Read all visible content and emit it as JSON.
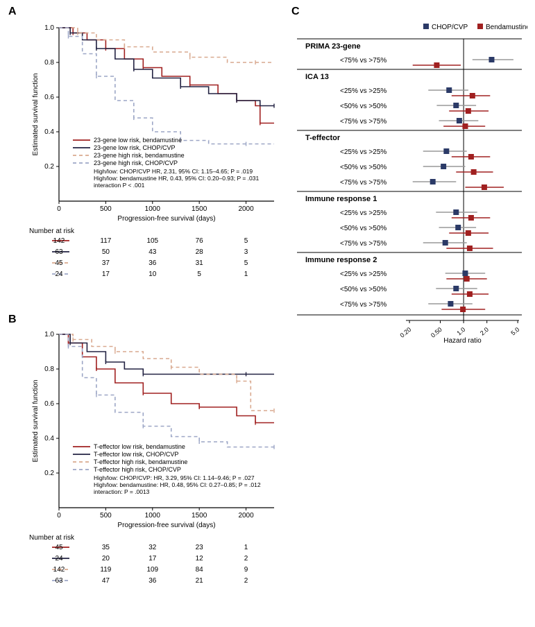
{
  "panels": {
    "A": "A",
    "B": "B",
    "C": "C"
  },
  "colors": {
    "beda_low": "#a02020",
    "chop_low": "#222242",
    "beda_high": "#d9a98f",
    "chop_high": "#9ca6c6",
    "chop_marker": "#2b3a67",
    "beda_marker": "#a02020",
    "axis": "#000"
  },
  "km": {
    "ylabel": "Estimated survival function",
    "xlabel": "Progression-free survival (days)",
    "yticks": [
      0.2,
      0.4,
      0.6,
      0.8,
      1.0
    ],
    "xticks": [
      0,
      500,
      1000,
      1500,
      2000
    ],
    "xlim": [
      0,
      2300
    ],
    "ylim": [
      0,
      1.0
    ]
  },
  "panelA": {
    "legend": [
      "23-gene low risk, bendamustine",
      "23-gene low risk, CHOP/CVP",
      "23-gene high risk, bendamustine",
      "23-gene high risk, CHOP/CVP"
    ],
    "stats": [
      "High/low: CHOP/CVP HR, 2.31, 95% CI: 1.15–4.65; P = .019",
      "High/low: bendamustine HR, 0.43, 95% CI: 0.20–0.93; P = .031",
      "interaction P < .001"
    ],
    "curves": {
      "beda_low": [
        [
          0,
          1.0
        ],
        [
          150,
          0.97
        ],
        [
          300,
          0.93
        ],
        [
          500,
          0.88
        ],
        [
          700,
          0.82
        ],
        [
          900,
          0.77
        ],
        [
          1100,
          0.72
        ],
        [
          1400,
          0.67
        ],
        [
          1700,
          0.62
        ],
        [
          1900,
          0.58
        ],
        [
          2100,
          0.55
        ],
        [
          2150,
          0.45
        ],
        [
          2300,
          0.45
        ]
      ],
      "chop_low": [
        [
          0,
          1.0
        ],
        [
          120,
          0.97
        ],
        [
          250,
          0.93
        ],
        [
          400,
          0.88
        ],
        [
          600,
          0.82
        ],
        [
          800,
          0.76
        ],
        [
          1000,
          0.71
        ],
        [
          1300,
          0.66
        ],
        [
          1600,
          0.62
        ],
        [
          1900,
          0.58
        ],
        [
          2150,
          0.55
        ],
        [
          2300,
          0.55
        ]
      ],
      "beda_high": [
        [
          0,
          1.0
        ],
        [
          200,
          0.97
        ],
        [
          400,
          0.93
        ],
        [
          700,
          0.89
        ],
        [
          1000,
          0.86
        ],
        [
          1400,
          0.83
        ],
        [
          1800,
          0.8
        ],
        [
          2100,
          0.8
        ],
        [
          2300,
          0.8
        ]
      ],
      "chop_high": [
        [
          0,
          1.0
        ],
        [
          100,
          0.95
        ],
        [
          250,
          0.85
        ],
        [
          400,
          0.72
        ],
        [
          600,
          0.58
        ],
        [
          800,
          0.48
        ],
        [
          1000,
          0.4
        ],
        [
          1300,
          0.35
        ],
        [
          1600,
          0.33
        ],
        [
          2000,
          0.33
        ],
        [
          2300,
          0.33
        ]
      ]
    },
    "risk_header": "Number at risk",
    "risk": {
      "beda_low": [
        142,
        117,
        105,
        76,
        5
      ],
      "chop_low": [
        63,
        50,
        43,
        28,
        3
      ],
      "beda_high": [
        45,
        37,
        36,
        31,
        5
      ],
      "chop_high": [
        24,
        17,
        10,
        5,
        1
      ]
    }
  },
  "panelB": {
    "legend": [
      "T-effector low risk, bendamustine",
      "T-effector low risk, CHOP/CVP",
      "T-effector high risk, bendamustine",
      "T-effector high risk, CHOP/CVP"
    ],
    "stats": [
      "High/low: CHOP/CVP: HR, 3.29, 95% CI: 1.14–9.46; P = .027",
      "High/low: bendamustine: HR, 0.48, 95% CI: 0.27–0.85; P = .012",
      "interaction: P = .0013"
    ],
    "curves": {
      "beda_low": [
        [
          0,
          1.0
        ],
        [
          100,
          0.95
        ],
        [
          250,
          0.87
        ],
        [
          400,
          0.8
        ],
        [
          600,
          0.72
        ],
        [
          900,
          0.66
        ],
        [
          1200,
          0.6
        ],
        [
          1500,
          0.58
        ],
        [
          1900,
          0.53
        ],
        [
          2100,
          0.49
        ],
        [
          2300,
          0.49
        ]
      ],
      "chop_low": [
        [
          0,
          1.0
        ],
        [
          120,
          0.95
        ],
        [
          300,
          0.9
        ],
        [
          500,
          0.84
        ],
        [
          700,
          0.8
        ],
        [
          900,
          0.77
        ],
        [
          1400,
          0.77
        ],
        [
          2000,
          0.77
        ],
        [
          2300,
          0.77
        ]
      ],
      "beda_high": [
        [
          0,
          1.0
        ],
        [
          150,
          0.97
        ],
        [
          350,
          0.93
        ],
        [
          600,
          0.9
        ],
        [
          900,
          0.86
        ],
        [
          1200,
          0.81
        ],
        [
          1500,
          0.77
        ],
        [
          1900,
          0.73
        ],
        [
          2050,
          0.56
        ],
        [
          2300,
          0.56
        ]
      ],
      "chop_high": [
        [
          0,
          1.0
        ],
        [
          100,
          0.93
        ],
        [
          250,
          0.75
        ],
        [
          400,
          0.65
        ],
        [
          600,
          0.55
        ],
        [
          900,
          0.47
        ],
        [
          1200,
          0.41
        ],
        [
          1500,
          0.38
        ],
        [
          1800,
          0.35
        ],
        [
          2300,
          0.35
        ]
      ]
    },
    "risk_header": "Number at risk",
    "risk": {
      "beda_low": [
        45,
        35,
        32,
        23,
        1
      ],
      "chop_low": [
        24,
        20,
        17,
        12,
        2
      ],
      "beda_high": [
        142,
        119,
        109,
        84,
        9
      ],
      "chop_high": [
        63,
        47,
        36,
        21,
        2
      ]
    }
  },
  "panelC": {
    "legend": {
      "chop": "CHOP/CVP",
      "beda": "Bendamustine"
    },
    "xlabel": "Hazard ratio",
    "xticks": [
      0.2,
      0.5,
      1.0,
      2.0,
      5.0
    ],
    "groups": [
      {
        "title": "PRIMA 23-gene",
        "rows": [
          {
            "label": "<75% vs  >75%",
            "chop": {
              "hr": 2.3,
              "lo": 1.3,
              "hi": 4.4
            },
            "beda": {
              "hr": 0.45,
              "lo": 0.22,
              "hi": 0.92
            }
          }
        ]
      },
      {
        "title": "ICA 13",
        "rows": [
          {
            "label": "<25% vs >25%",
            "chop": {
              "hr": 0.65,
              "lo": 0.35,
              "hi": 1.15
            },
            "beda": {
              "hr": 1.3,
              "lo": 0.7,
              "hi": 2.2
            }
          },
          {
            "label": "<50% vs >50%",
            "chop": {
              "hr": 0.8,
              "lo": 0.45,
              "hi": 1.45
            },
            "beda": {
              "hr": 1.15,
              "lo": 0.65,
              "hi": 2.1
            }
          },
          {
            "label": "<75% vs >75%",
            "chop": {
              "hr": 0.88,
              "lo": 0.48,
              "hi": 1.55
            },
            "beda": {
              "hr": 1.05,
              "lo": 0.55,
              "hi": 1.9
            }
          }
        ]
      },
      {
        "title": "T-effector",
        "rows": [
          {
            "label": "<25% vs >25%",
            "chop": {
              "hr": 0.6,
              "lo": 0.3,
              "hi": 1.1
            },
            "beda": {
              "hr": 1.25,
              "lo": 0.7,
              "hi": 2.2
            }
          },
          {
            "label": "<50% vs >50%",
            "chop": {
              "hr": 0.55,
              "lo": 0.3,
              "hi": 1.05
            },
            "beda": {
              "hr": 1.35,
              "lo": 0.8,
              "hi": 2.4
            }
          },
          {
            "label": "<75% vs >75%",
            "chop": {
              "hr": 0.4,
              "lo": 0.22,
              "hi": 0.8
            },
            "beda": {
              "hr": 1.85,
              "lo": 1.05,
              "hi": 3.3
            }
          }
        ]
      },
      {
        "title": "Immune response 1",
        "rows": [
          {
            "label": "<25% vs >25%",
            "chop": {
              "hr": 0.8,
              "lo": 0.44,
              "hi": 1.5
            },
            "beda": {
              "hr": 1.25,
              "lo": 0.7,
              "hi": 2.2
            }
          },
          {
            "label": "<50% vs >50%",
            "chop": {
              "hr": 0.85,
              "lo": 0.48,
              "hi": 1.45
            },
            "beda": {
              "hr": 1.15,
              "lo": 0.65,
              "hi": 2.1
            }
          },
          {
            "label": "<75% vs >75%",
            "chop": {
              "hr": 0.58,
              "lo": 0.3,
              "hi": 1.1
            },
            "beda": {
              "hr": 1.2,
              "lo": 0.6,
              "hi": 2.4
            }
          }
        ]
      },
      {
        "title": "Immune response 2",
        "rows": [
          {
            "label": "<25% vs >25%",
            "chop": {
              "hr": 1.05,
              "lo": 0.58,
              "hi": 1.9
            },
            "beda": {
              "hr": 1.1,
              "lo": 0.6,
              "hi": 2.0
            }
          },
          {
            "label": "<50% vs >50%",
            "chop": {
              "hr": 0.8,
              "lo": 0.44,
              "hi": 1.5
            },
            "beda": {
              "hr": 1.2,
              "lo": 0.7,
              "hi": 2.1
            }
          },
          {
            "label": "<75% vs >75%",
            "chop": {
              "hr": 0.68,
              "lo": 0.35,
              "hi": 1.3
            },
            "beda": {
              "hr": 0.98,
              "lo": 0.52,
              "hi": 1.9
            }
          }
        ]
      }
    ]
  }
}
